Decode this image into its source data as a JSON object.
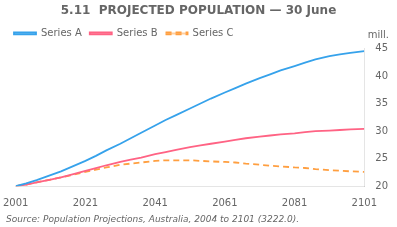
{
  "chart_data": {
    "type": "line",
    "title": "5.11  PROJECTED POPULATION — 30 June",
    "ylabel": "mill.",
    "source": "Source: Population Projections, Australia, 2004 to 2101 (3222.0).",
    "x": [
      2001,
      2004,
      2007,
      2011,
      2014,
      2017,
      2021,
      2024,
      2027,
      2031,
      2034,
      2037,
      2041,
      2044,
      2047,
      2051,
      2054,
      2057,
      2061,
      2064,
      2067,
      2071,
      2074,
      2077,
      2081,
      2084,
      2087,
      2091,
      2094,
      2097,
      2101
    ],
    "series": [
      {
        "name": "Series A",
        "line_style": "solid",
        "values": [
          20.0,
          20.5,
          21.1,
          22.0,
          22.7,
          23.5,
          24.6,
          25.5,
          26.5,
          27.7,
          28.7,
          29.7,
          31.0,
          32.0,
          32.9,
          34.1,
          35.0,
          35.9,
          37.0,
          37.8,
          38.6,
          39.6,
          40.3,
          41.0,
          41.8,
          42.4,
          43.0,
          43.6,
          43.9,
          44.2,
          44.5
        ]
      },
      {
        "name": "Series B",
        "line_style": "solid",
        "values": [
          20.0,
          20.3,
          20.7,
          21.2,
          21.6,
          22.1,
          22.8,
          23.3,
          23.8,
          24.4,
          24.8,
          25.2,
          25.8,
          26.2,
          26.6,
          27.1,
          27.4,
          27.7,
          28.1,
          28.4,
          28.7,
          29.0,
          29.2,
          29.4,
          29.6,
          29.8,
          30.0,
          30.1,
          30.2,
          30.3,
          30.4
        ]
      },
      {
        "name": "Series C",
        "line_style": "dashed",
        "values": [
          20.0,
          20.3,
          20.7,
          21.2,
          21.6,
          22.0,
          22.6,
          23.0,
          23.4,
          23.9,
          24.1,
          24.3,
          24.6,
          24.7,
          24.7,
          24.7,
          24.6,
          24.5,
          24.4,
          24.3,
          24.1,
          23.9,
          23.7,
          23.6,
          23.4,
          23.3,
          23.1,
          22.9,
          22.8,
          22.7,
          22.6
        ]
      }
    ],
    "xlim": [
      2001,
      2101
    ],
    "xticks": [
      2001,
      2021,
      2041,
      2061,
      2081,
      2101
    ],
    "ylim": [
      20,
      45
    ],
    "yticks": [
      20,
      25,
      30,
      35,
      40,
      45
    ],
    "grid": false,
    "legend": "upper left"
  }
}
